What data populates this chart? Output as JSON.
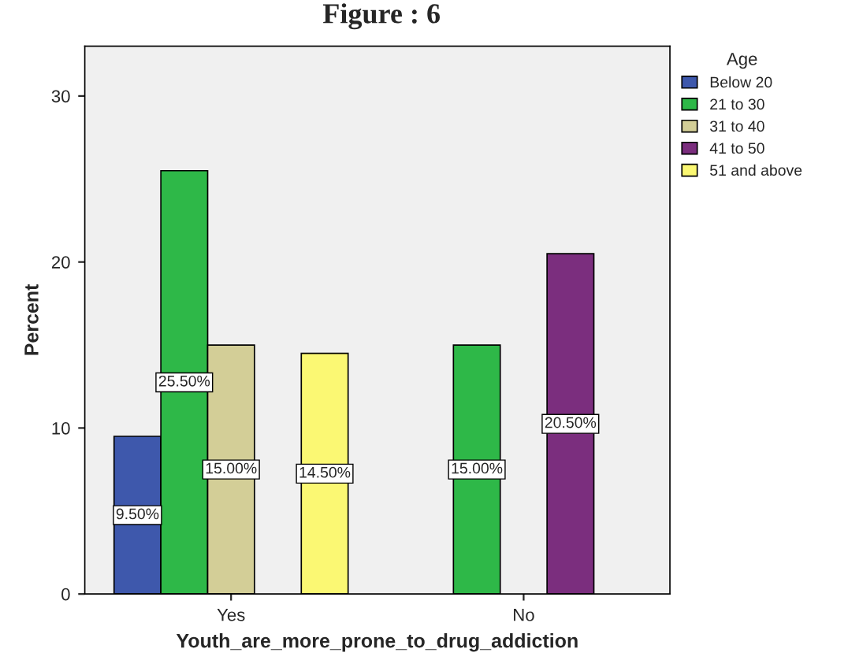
{
  "chart_data": {
    "type": "bar",
    "title": "Figure : 6",
    "xlabel": "Youth_are_more_prone_to_drug_addiction",
    "ylabel": "Percent",
    "legend_title": "Age",
    "categories": [
      "Yes",
      "No"
    ],
    "series": [
      {
        "name": "Below 20",
        "color": "#3e58ac",
        "values": [
          9.5,
          null
        ],
        "value_labels": [
          "9.50%",
          null
        ]
      },
      {
        "name": "21 to 30",
        "color": "#2eb848",
        "values": [
          25.5,
          15.0
        ],
        "value_labels": [
          "25.50%",
          "15.00%"
        ]
      },
      {
        "name": "31 to 40",
        "color": "#d3ce97",
        "values": [
          15.0,
          null
        ],
        "value_labels": [
          "15.00%",
          null
        ]
      },
      {
        "name": "41 to 50",
        "color": "#7b2e7e",
        "values": [
          null,
          20.5
        ],
        "value_labels": [
          null,
          "20.50%"
        ]
      },
      {
        "name": "51 and above",
        "color": "#fbf873",
        "values": [
          14.5,
          null
        ],
        "value_labels": [
          "14.50%",
          null
        ]
      }
    ],
    "ylim": [
      0,
      33
    ],
    "yticks": [
      0,
      10,
      20,
      30
    ],
    "grid": false,
    "legend": "top right"
  }
}
